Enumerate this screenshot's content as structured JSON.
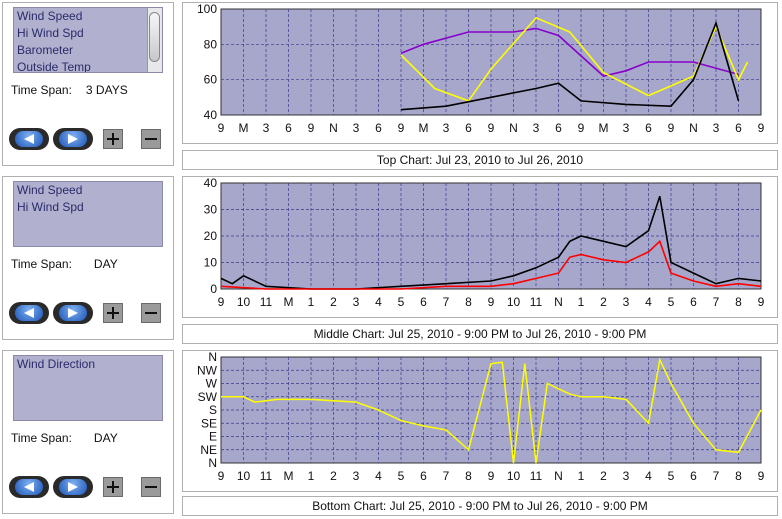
{
  "panels": [
    {
      "items": [
        "Wind Speed",
        "Hi Wind Spd",
        "Barometer",
        "Outside Temp"
      ],
      "has_scrollbar": true,
      "time_span_label": "Time Span:",
      "time_span_value": "3 DAYS"
    },
    {
      "items": [
        "Wind Speed",
        "Hi Wind Spd"
      ],
      "has_scrollbar": false,
      "time_span_label": "Time Span:",
      "time_span_value": "DAY"
    },
    {
      "items": [
        "Wind Direction"
      ],
      "has_scrollbar": false,
      "time_span_label": "Time Span:",
      "time_span_value": "DAY"
    }
  ],
  "captions": {
    "top": "Top Chart:  Jul 23, 2010  to  Jul 26, 2010",
    "middle": "Middle Chart:  Jul 25, 2010 - 9:00 PM  to  Jul 26, 2010 - 9:00 PM",
    "bottom": "Bottom Chart:  Jul 25, 2010 - 9:00 PM  to  Jul 26, 2010 - 9:00 PM"
  },
  "colors": {
    "plot_bg": "#a7a7cc",
    "grid": "#3a3a8a",
    "wind": "#000000",
    "hi_wind": "#ff0000",
    "temp": "#ffff00",
    "baro": "#8800cc",
    "direction": "#ffff00"
  },
  "chart_data": [
    {
      "type": "line",
      "id": "top",
      "x_tick_labels": [
        "9",
        "M",
        "3",
        "6",
        "9",
        "N",
        "3",
        "6",
        "9",
        "M",
        "3",
        "6",
        "9",
        "N",
        "3",
        "6",
        "9",
        "M",
        "3",
        "6",
        "9",
        "N",
        "3",
        "6",
        "9"
      ],
      "y_tick_labels": [
        "40",
        "60",
        "80",
        "100"
      ],
      "ylim": [
        40,
        100
      ],
      "grid": true,
      "series": [
        {
          "name": "Barometer",
          "color": "#8800cc",
          "x": [
            8,
            9,
            11,
            13,
            14,
            15,
            17,
            18,
            19,
            21,
            23
          ],
          "y": [
            75,
            80,
            87,
            87,
            89,
            85,
            62,
            65,
            70,
            70,
            63
          ]
        },
        {
          "name": "Outside Temp",
          "color": "#ffff00",
          "x": [
            8,
            9.5,
            11,
            12,
            14,
            15.5,
            17,
            19,
            21,
            22,
            23,
            23.4
          ],
          "y": [
            74,
            55,
            48,
            66,
            95,
            87,
            64,
            51,
            62,
            90,
            60,
            70
          ]
        },
        {
          "name": "Wind Speed",
          "color": "#000000",
          "x": [
            8,
            10,
            12,
            14,
            15,
            16,
            18,
            20,
            21,
            22,
            23
          ],
          "y": [
            43,
            45,
            50,
            55,
            58,
            48,
            46,
            45,
            60,
            92,
            48
          ]
        }
      ]
    },
    {
      "type": "line",
      "id": "middle",
      "x_tick_labels": [
        "9",
        "10",
        "11",
        "M",
        "1",
        "2",
        "3",
        "4",
        "5",
        "6",
        "7",
        "8",
        "9",
        "10",
        "11",
        "N",
        "1",
        "2",
        "3",
        "4",
        "5",
        "6",
        "7",
        "8",
        "9"
      ],
      "y_tick_labels": [
        "0",
        "10",
        "20",
        "30",
        "40"
      ],
      "ylim": [
        0,
        40
      ],
      "grid": true,
      "series": [
        {
          "name": "Wind Speed",
          "color": "#000000",
          "x": [
            0,
            0.5,
            1,
            2,
            4,
            6,
            8,
            10,
            12,
            13,
            14,
            15,
            15.5,
            16,
            17,
            18,
            19,
            19.5,
            20,
            21,
            22,
            23,
            24
          ],
          "y": [
            4,
            2,
            5,
            1,
            0,
            0,
            1,
            2,
            3,
            5,
            8,
            12,
            18,
            20,
            18,
            16,
            22,
            35,
            10,
            6,
            2,
            4,
            3
          ]
        },
        {
          "name": "Hi Wind Spd",
          "color": "#ff0000",
          "x": [
            0,
            2,
            4,
            6,
            8,
            10,
            12,
            13,
            14,
            15,
            15.5,
            16,
            17,
            18,
            19,
            19.5,
            20,
            21,
            22,
            23,
            24
          ],
          "y": [
            1,
            0,
            0,
            0,
            0,
            1,
            1,
            2,
            4,
            6,
            12,
            13,
            11,
            10,
            14,
            18,
            6,
            3,
            1,
            2,
            1
          ]
        }
      ]
    },
    {
      "type": "line",
      "id": "bottom",
      "x_tick_labels": [
        "9",
        "10",
        "11",
        "M",
        "1",
        "2",
        "3",
        "4",
        "5",
        "6",
        "7",
        "8",
        "9",
        "10",
        "11",
        "N",
        "1",
        "2",
        "3",
        "4",
        "5",
        "6",
        "7",
        "8",
        "9"
      ],
      "y_tick_labels": [
        "N",
        "NE",
        "E",
        "SE",
        "S",
        "SW",
        "W",
        "NW",
        "N"
      ],
      "ylim": [
        0,
        8
      ],
      "grid": true,
      "series": [
        {
          "name": "Wind Direction",
          "color": "#ffff00",
          "x": [
            0,
            1,
            1.5,
            2,
            2.5,
            4,
            6,
            7,
            8,
            9,
            10,
            11,
            12,
            12.5,
            13,
            13.5,
            14,
            14.5,
            15,
            15.5,
            16,
            17,
            18,
            19,
            19.5,
            20,
            21,
            22,
            23,
            24
          ],
          "y": [
            5,
            5,
            4.6,
            4.7,
            4.8,
            4.8,
            4.6,
            4,
            3.2,
            2.8,
            2.5,
            1,
            7.5,
            7.6,
            0,
            7.5,
            0,
            6,
            5.6,
            5.2,
            5,
            5,
            4.8,
            3,
            7.8,
            6,
            3,
            1,
            0.8,
            4
          ]
        }
      ]
    }
  ]
}
